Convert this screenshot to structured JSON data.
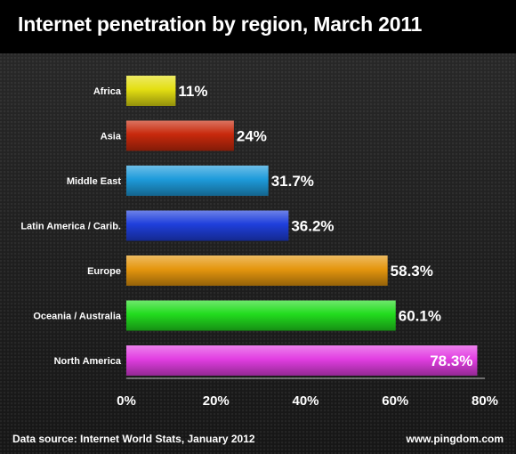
{
  "title": "Internet penetration by region, March 2011",
  "footer": {
    "source": "Data source: Internet World Stats, January 2012",
    "site": "www.pingdom.com"
  },
  "chart_data": {
    "type": "bar",
    "orientation": "horizontal",
    "title": "Internet penetration by region, March 2011",
    "categories": [
      "Africa",
      "Asia",
      "Middle East",
      "Latin America / Carib.",
      "Europe",
      "Oceania / Australia",
      "North America"
    ],
    "values": [
      11,
      24,
      31.7,
      36.2,
      58.3,
      60.1,
      78.3
    ],
    "value_labels": [
      "11%",
      "24%",
      "31.7%",
      "36.2%",
      "58.3%",
      "60.1%",
      "78.3%"
    ],
    "xlim": [
      0,
      80
    ],
    "x_ticks": [
      0,
      20,
      40,
      60,
      80
    ],
    "x_tick_labels": [
      "0%",
      "20%",
      "40%",
      "60%",
      "80%"
    ],
    "colors": [
      "#e4df12",
      "#c8290c",
      "#1e9bdb",
      "#1f3fdc",
      "#e5960e",
      "#22dc1e",
      "#e23ee2"
    ],
    "xlabel": "",
    "ylabel": ""
  }
}
